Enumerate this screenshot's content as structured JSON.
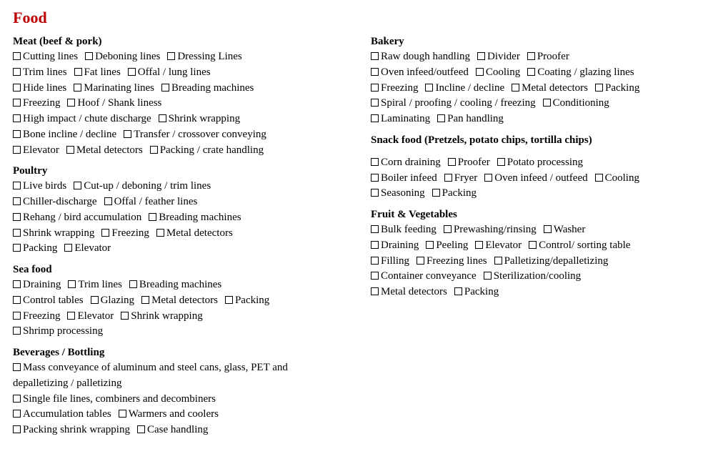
{
  "title": "Food",
  "left": [
    {
      "heading": "Meat (beef & pork)",
      "rows": [
        [
          "Cutting lines",
          "Deboning lines",
          "Dressing Lines"
        ],
        [
          "Trim lines",
          "Fat lines",
          "Offal / lung lines"
        ],
        [
          "Hide lines",
          "Marinating lines",
          "Breading machines"
        ],
        [
          "Freezing",
          "Hoof / Shank liness"
        ],
        [
          "High impact / chute discharge",
          "Shrink wrapping"
        ],
        [
          "Bone incline / decline",
          "Transfer / crossover conveying"
        ],
        [
          "Elevator",
          "Metal detectors",
          "Packing / crate handling"
        ]
      ]
    },
    {
      "heading": "Poultry",
      "rows": [
        [
          "Live birds",
          "Cut-up / deboning / trim lines"
        ],
        [
          "Chiller-discharge",
          "Offal / feather lines"
        ],
        [
          "Rehang / bird accumulation",
          "Breading machines"
        ],
        [
          "Shrink wrapping",
          "Freezing",
          "Metal detectors"
        ],
        [
          "Packing",
          "Elevator"
        ]
      ]
    },
    {
      "heading": "Sea food",
      "rows": [
        [
          "Draining",
          "Trim lines",
          "Breading machines"
        ],
        [
          "Control tables",
          "Glazing",
          "Metal detectors",
          "Packing"
        ],
        [
          "Freezing",
          "Elevator",
          "Shrink wrapping"
        ],
        [
          "Shrimp processing"
        ]
      ]
    },
    {
      "heading": "Beverages / Bottling",
      "rows": [
        [
          {
            "label": "Mass conveyance of aluminum and steel cans, glass, PET and depalletizing / palletizing",
            "wrap": true
          }
        ],
        [
          "Single file lines, combiners and decombiners"
        ],
        [
          "Accumulation tables",
          "Warmers and coolers"
        ],
        [
          "Packing shrink wrapping",
          "Case handling"
        ]
      ]
    }
  ],
  "right": [
    {
      "heading": "Bakery",
      "rows": [
        [
          "Raw dough handling",
          "Divider",
          "Proofer"
        ],
        [
          "Oven infeed/outfeed",
          "Cooling",
          "Coating / glazing lines"
        ],
        [
          "Freezing",
          "Incline / decline",
          "Metal detectors",
          "Packing"
        ],
        [
          "Spiral / proofing / cooling / freezing",
          "Conditioning"
        ],
        [
          "Laminating",
          "Pan handling"
        ]
      ]
    },
    {
      "heading": "Snack food (Pretzels, potato chips, tortilla chips)",
      "gap": true,
      "rows": [
        [
          "Corn draining",
          "Proofer",
          "Potato processing"
        ],
        [
          "Boiler infeed",
          "Fryer",
          "Oven infeed / outfeed",
          "Cooling"
        ],
        [
          "Seasoning",
          "Packing"
        ]
      ]
    },
    {
      "heading": "Fruit & Vegetables",
      "rows": [
        [
          "Bulk feeding",
          "Prewashing/rinsing",
          "Washer"
        ],
        [
          "Draining",
          "Peeling",
          "Elevator",
          "Control/ sorting table"
        ],
        [
          "Filling",
          "Freezing lines",
          "Palletizing/depalletizing"
        ],
        [
          "Container conveyance",
          "Sterilization/cooling"
        ],
        [
          "Metal detectors",
          "Packing"
        ]
      ]
    }
  ]
}
